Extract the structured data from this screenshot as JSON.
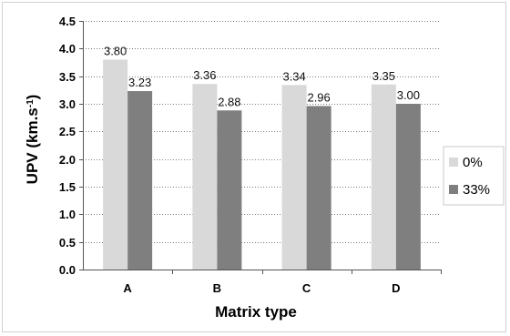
{
  "chart_data": {
    "type": "bar",
    "categories": [
      "A",
      "B",
      "C",
      "D"
    ],
    "series": [
      {
        "name": "0%",
        "values": [
          3.8,
          3.36,
          3.34,
          3.35
        ],
        "labels": [
          "3.80",
          "3.36",
          "3.34",
          "3.35"
        ],
        "color": "#d9d9d9"
      },
      {
        "name": "33%",
        "values": [
          3.23,
          2.88,
          2.96,
          3.0
        ],
        "labels": [
          "3.23",
          "2.88",
          "2.96",
          "3.00"
        ],
        "color": "#7f7f7f"
      }
    ],
    "xlabel": "Matrix type",
    "ylabel_main": "UPV (km.s",
    "ylabel_sup": "-1",
    "ylabel_close": ")",
    "ylim": [
      0,
      4.5
    ],
    "yticks": [
      "0.0",
      "0.5",
      "1.0",
      "1.5",
      "2.0",
      "2.5",
      "3.0",
      "3.5",
      "4.0",
      "4.5"
    ],
    "ytick_values": [
      0,
      0.5,
      1.0,
      1.5,
      2.0,
      2.5,
      3.0,
      3.5,
      4.0,
      4.5
    ],
    "grid": true,
    "legend_position": "right"
  }
}
